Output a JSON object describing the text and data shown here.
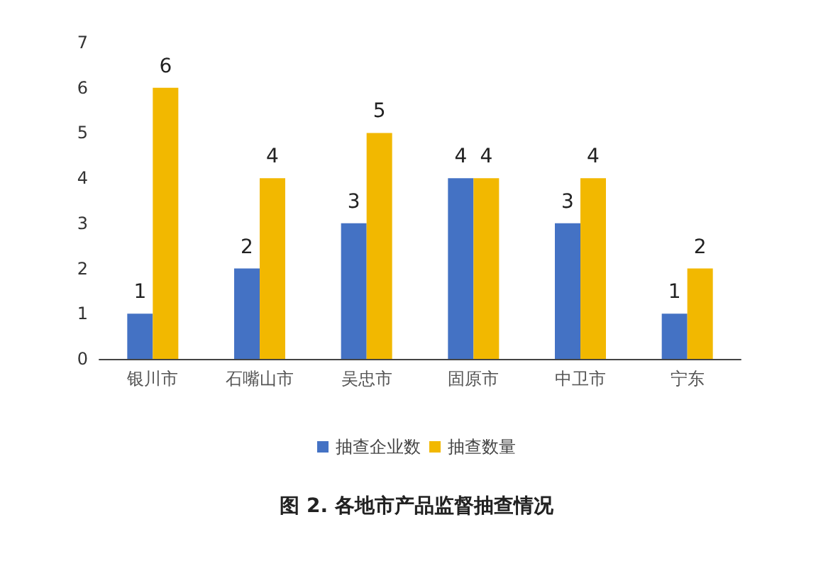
{
  "chart_data": {
    "type": "bar",
    "title": "图 2. 各地市产品监督抽查情况",
    "categories": [
      "银川市",
      "石嘴山市",
      "吴忠市",
      "固原市",
      "中卫市",
      "宁东"
    ],
    "series": [
      {
        "name": "抽查企业数",
        "color": "#4472c4",
        "values": [
          1,
          2,
          3,
          4,
          3,
          1
        ]
      },
      {
        "name": "抽查数量",
        "color": "#f2b800",
        "values": [
          6,
          4,
          5,
          4,
          4,
          2
        ]
      }
    ],
    "ylim": [
      0,
      7
    ],
    "yticks": [
      0,
      1,
      2,
      3,
      4,
      5,
      6,
      7
    ],
    "grid": false,
    "legend": "bottom",
    "data_labels": true
  }
}
